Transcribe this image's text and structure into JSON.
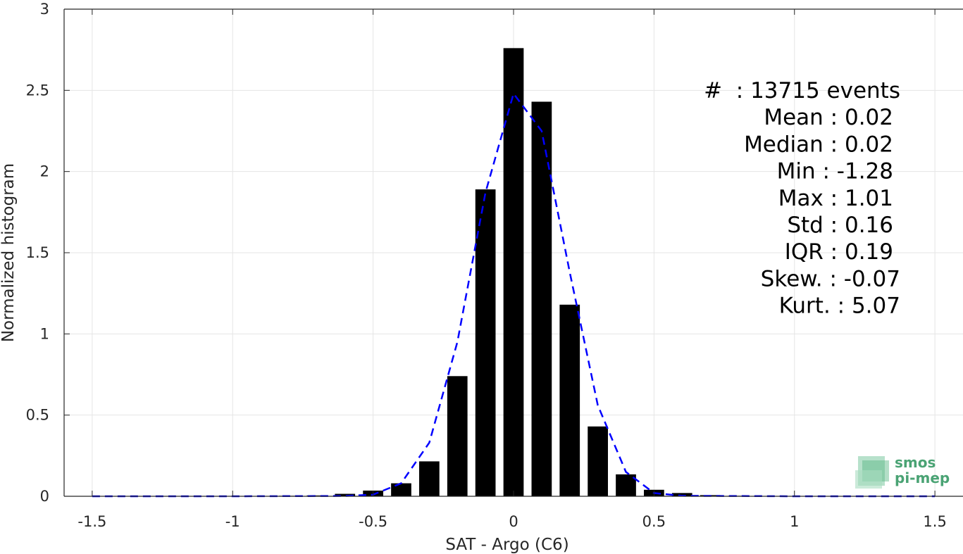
{
  "chart_data": {
    "type": "bar",
    "xlabel": "SAT - Argo (C6)",
    "ylabel": "Normalized histogram",
    "xlim": [
      -1.6,
      1.6
    ],
    "ylim": [
      0,
      3
    ],
    "xticks": [
      "-1.5",
      "-1",
      "-0.5",
      "0",
      "0.5",
      "1",
      "1.5"
    ],
    "yticks": [
      "0",
      "0.5",
      "1",
      "1.5",
      "2",
      "2.5",
      "3"
    ],
    "grid": true,
    "colors": {
      "bars": "#000000",
      "fit": "#0000ff",
      "grid": "#e5e5e5",
      "axis": "#262626"
    },
    "bins": {
      "x": [
        -1.5,
        -1.4,
        -1.3,
        -1.2,
        -1.1,
        -1.0,
        -0.9,
        -0.8,
        -0.7,
        -0.6,
        -0.5,
        -0.4,
        -0.3,
        -0.2,
        -0.1,
        0.0,
        0.1,
        0.2,
        0.3,
        0.4,
        0.5,
        0.6,
        0.7,
        0.8,
        0.9,
        1.0,
        1.1,
        1.2,
        1.3,
        1.4,
        1.5
      ],
      "values": [
        0,
        0,
        0,
        0,
        0,
        0,
        0.002,
        0.003,
        0.005,
        0.015,
        0.035,
        0.08,
        0.215,
        0.74,
        1.89,
        2.76,
        2.43,
        1.18,
        0.43,
        0.135,
        0.04,
        0.02,
        0.007,
        0.003,
        0.002,
        0.001,
        0,
        0,
        0,
        0,
        0
      ]
    },
    "fit_curve": {
      "style": "dashed",
      "x": [
        -1.5,
        -1.0,
        -0.6,
        -0.5,
        -0.4,
        -0.3,
        -0.2,
        -0.1,
        0.0,
        0.1,
        0.2,
        0.3,
        0.4,
        0.5,
        0.6,
        1.0,
        1.5
      ],
      "values": [
        0,
        0,
        0.002,
        0.01,
        0.08,
        0.33,
        0.95,
        1.87,
        2.48,
        2.25,
        1.38,
        0.56,
        0.15,
        0.02,
        0.003,
        0,
        0
      ]
    },
    "stats": [
      "#  : 13715 events",
      "Mean : 0.02",
      "Median : 0.02",
      "Min : -1.28",
      "Max : 1.01",
      "Std : 0.16",
      "IQR : 0.19",
      "Skew. : -0.07",
      "Kurt. : 5.07"
    ],
    "logo": {
      "line1": "smos",
      "line2": "pi-mep",
      "color": "#4aa374"
    }
  }
}
